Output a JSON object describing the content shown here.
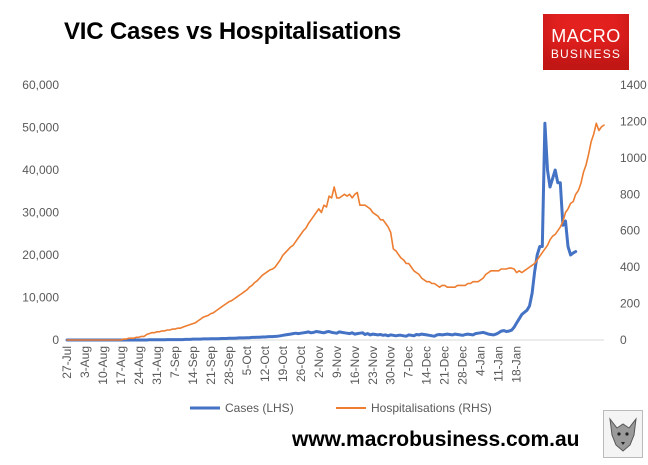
{
  "header": {
    "title": "VIC Cases vs Hospitalisations"
  },
  "logo": {
    "line1": "MACRO",
    "line2": "BUSINESS"
  },
  "footer": {
    "site": "www.macrobusiness.com.au"
  },
  "colors": {
    "cases": "#4472c4",
    "hospitalisations": "#ed7d31",
    "logo_red": "#e3211f"
  },
  "chart_data": {
    "type": "line",
    "title": "VIC Cases vs Hospitalisations",
    "x_ticks": [
      "27-Jul",
      "3-Aug",
      "10-Aug",
      "17-Aug",
      "24-Aug",
      "31-Aug",
      "7-Sep",
      "14-Sep",
      "21-Sep",
      "28-Sep",
      "5-Oct",
      "12-Oct",
      "19-Oct",
      "26-Oct",
      "2-Nov",
      "9-Nov",
      "16-Nov",
      "23-Nov",
      "30-Nov",
      "7-Dec",
      "14-Dec",
      "21-Dec",
      "28-Dec",
      "4-Jan",
      "11-Jan",
      "18-Jan"
    ],
    "y_left": {
      "ticks": [
        "0",
        "10,000",
        "20,000",
        "30,000",
        "40,000",
        "50,000",
        "60,000"
      ],
      "range": [
        0,
        60000
      ]
    },
    "y_right": {
      "ticks": [
        "0",
        "200",
        "400",
        "600",
        "800",
        "1000",
        "1200",
        "1400"
      ],
      "range": [
        0,
        1400
      ]
    },
    "grid": false,
    "legend": {
      "position": "bottom"
    },
    "series": [
      {
        "name": "Cases (LHS)",
        "axis": "left",
        "day_offset": 0,
        "values": [
          0,
          0,
          0,
          0,
          0,
          0,
          0,
          0,
          0,
          0,
          0,
          0,
          0,
          0,
          0,
          0,
          0,
          0,
          0,
          0,
          0,
          0,
          0,
          0,
          0,
          0,
          0,
          0,
          0,
          0,
          0,
          0,
          50,
          50,
          50,
          50,
          50,
          50,
          50,
          100,
          100,
          100,
          100,
          100,
          100,
          100,
          150,
          150,
          150,
          200,
          200,
          200,
          200,
          250,
          250,
          250,
          300,
          300,
          300,
          300,
          350,
          350,
          350,
          400,
          400,
          400,
          450,
          500,
          500,
          500,
          550,
          550,
          600,
          600,
          650,
          650,
          700,
          700,
          750,
          800,
          800,
          850,
          900,
          1000,
          1100,
          1200,
          1300,
          1400,
          1500,
          1600,
          1500,
          1600,
          1700,
          1800,
          1900,
          1700,
          1800,
          2000,
          1900,
          1800,
          1700,
          1900,
          2000,
          1800,
          1700,
          1600,
          1900,
          1800,
          1700,
          1600,
          1500,
          1700,
          1400,
          1500,
          1600,
          1700,
          1300,
          1500,
          1200,
          1400,
          1300,
          1200,
          1300,
          1100,
          1200,
          1000,
          1200,
          1100,
          1000,
          1100,
          1100,
          1000,
          900,
          1200,
          1100,
          1000,
          1300,
          1200,
          1400,
          1300,
          1200,
          1100,
          1000,
          900,
          1200,
          1300,
          1200,
          1300,
          1400,
          1300,
          1200,
          1400,
          1300,
          1200,
          1100,
          1300,
          1400,
          1300,
          1200,
          1500,
          1600,
          1700,
          1800,
          1600,
          1400,
          1300,
          1200,
          1400,
          1700,
          2100,
          2200,
          2000,
          2100,
          2300,
          3000,
          4000,
          5000,
          6000,
          6500,
          7000,
          8000,
          11000,
          16000,
          20000,
          22000,
          22000,
          51000,
          40000,
          36000,
          38000,
          40000,
          37000,
          37000,
          27000,
          28000,
          22000,
          20000,
          20500,
          20800
        ]
      },
      {
        "name": "Hospitalisations (RHS)",
        "axis": "right",
        "day_offset": 0,
        "values": [
          0,
          0,
          0,
          0,
          0,
          0,
          0,
          0,
          0,
          0,
          0,
          0,
          0,
          0,
          0,
          0,
          0,
          0,
          0,
          0,
          0,
          0,
          5,
          5,
          10,
          10,
          10,
          15,
          15,
          20,
          20,
          30,
          35,
          40,
          40,
          45,
          45,
          50,
          50,
          55,
          55,
          60,
          60,
          65,
          65,
          70,
          75,
          80,
          85,
          90,
          95,
          105,
          115,
          125,
          130,
          135,
          145,
          150,
          160,
          170,
          180,
          190,
          200,
          210,
          215,
          225,
          235,
          245,
          255,
          265,
          275,
          290,
          300,
          315,
          325,
          340,
          355,
          365,
          375,
          385,
          390,
          400,
          420,
          440,
          465,
          480,
          495,
          510,
          520,
          540,
          560,
          580,
          600,
          615,
          640,
          660,
          680,
          700,
          720,
          700,
          740,
          730,
          790,
          780,
          840,
          780,
          780,
          790,
          800,
          790,
          800,
          780,
          800,
          810,
          740,
          740,
          740,
          730,
          720,
          700,
          690,
          680,
          660,
          660,
          640,
          620,
          590,
          500,
          490,
          470,
          450,
          440,
          420,
          420,
          400,
          380,
          370,
          360,
          340,
          330,
          320,
          320,
          310,
          310,
          300,
          290,
          300,
          300,
          290,
          290,
          290,
          290,
          300,
          300,
          300,
          300,
          310,
          310,
          320,
          320,
          320,
          330,
          340,
          360,
          370,
          380,
          380,
          380,
          380,
          390,
          390,
          390,
          395,
          395,
          390,
          370,
          380,
          370,
          380,
          390,
          400,
          410,
          420,
          440,
          460,
          480,
          500,
          520,
          550,
          570,
          580,
          600,
          620,
          650,
          700,
          720,
          750,
          760,
          800,
          820,
          860,
          920,
          960,
          1020,
          1090,
          1130,
          1190,
          1150,
          1170,
          1180
        ]
      }
    ]
  }
}
